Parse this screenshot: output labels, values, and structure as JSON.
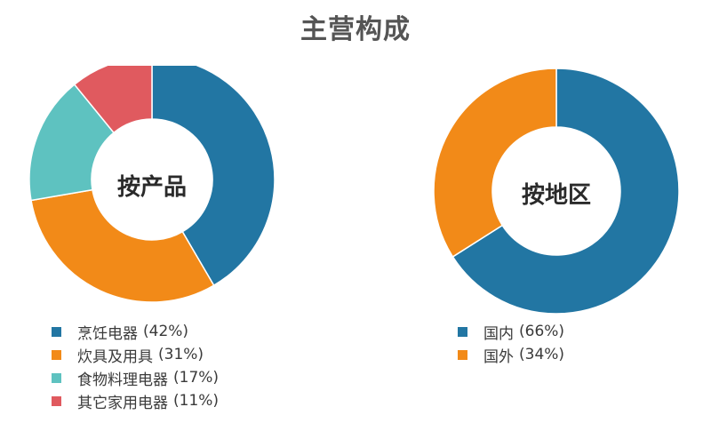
{
  "title": "主营构成",
  "chart_data": [
    {
      "type": "pie",
      "title": "按产品",
      "donut": true,
      "series": [
        {
          "name": "烹饪电器",
          "value": 42,
          "label": "(42%)",
          "color": "#2276a3"
        },
        {
          "name": "炊具及用具",
          "value": 31,
          "label": "(31%)",
          "color": "#f28a18"
        },
        {
          "name": "食物料理电器",
          "value": 17,
          "label": "(17%)",
          "color": "#5ec2c0"
        },
        {
          "name": "其它家用电器",
          "value": 11,
          "label": "(11%)",
          "color": "#e05a5f"
        }
      ],
      "legend_position": "bottom-left"
    },
    {
      "type": "pie",
      "title": "按地区",
      "donut": true,
      "series": [
        {
          "name": "国内",
          "value": 66,
          "label": "(66%)",
          "color": "#2276a3"
        },
        {
          "name": "国外",
          "value": 34,
          "label": "(34%)",
          "color": "#f28a18"
        }
      ],
      "legend_position": "bottom-left"
    }
  ]
}
